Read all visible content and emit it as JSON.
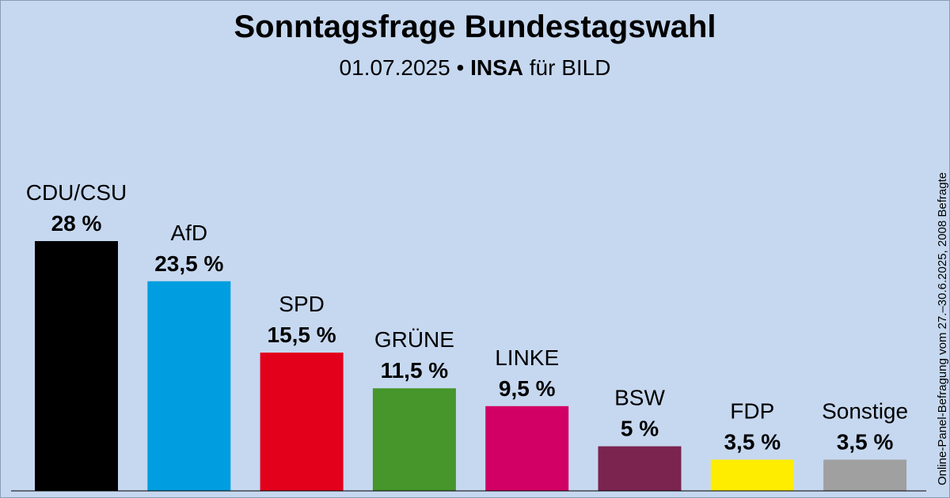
{
  "chart_data": {
    "type": "bar",
    "title": "Sonntagsfrage Bundestagswahl",
    "subtitle": {
      "date": "01.07.2025",
      "separator": "•",
      "institute": "INSA",
      "client": "für BILD"
    },
    "side_note": "Online-Panel-Befragung vom 27.–30.6.2025, 2008 Befragte",
    "categories": [
      "CDU/CSU",
      "AfD",
      "SPD",
      "GRÜNE",
      "LINKE",
      "BSW",
      "FDP",
      "Sonstige"
    ],
    "values": [
      28,
      23.5,
      15.5,
      11.5,
      9.5,
      5,
      3.5,
      3.5
    ],
    "value_labels": [
      "28 %",
      "23,5 %",
      "15,5 %",
      "11,5 %",
      "9,5 %",
      "5 %",
      "3,5 %",
      "3,5 %"
    ],
    "colors": [
      "#000000",
      "#009ee0",
      "#e3001b",
      "#46962b",
      "#d20064",
      "#7b2450",
      "#ffed00",
      "#a0a0a0"
    ],
    "ylim": [
      0,
      28
    ],
    "grid": false,
    "legend": "none"
  }
}
